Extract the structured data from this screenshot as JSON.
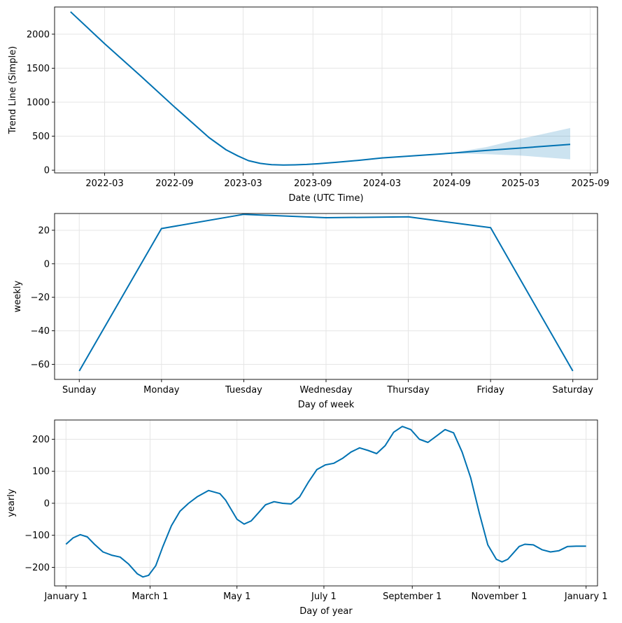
{
  "chart_data": [
    {
      "type": "line",
      "xlabel": "Date (UTC Time)",
      "ylabel": "Trend Line (Simple)",
      "xlim": [
        "2021-10-20",
        "2025-09-20"
      ],
      "ylim": [
        -40,
        2400
      ],
      "grid": true,
      "x_ticks": [
        "2022-03",
        "2022-09",
        "2023-03",
        "2023-09",
        "2024-03",
        "2024-09",
        "2025-03",
        "2025-09"
      ],
      "y_ticks": [
        0,
        500,
        1000,
        1500,
        2000
      ],
      "series": [
        {
          "x": [
            "2021-12-01",
            "2022-03-01",
            "2022-06-01",
            "2022-09-01",
            "2022-12-01",
            "2023-01-15",
            "2023-02-15",
            "2023-03-15",
            "2023-04-15",
            "2023-05-15",
            "2023-06-15",
            "2023-07-15",
            "2023-08-15",
            "2023-09-15",
            "2023-11-01",
            "2024-01-01",
            "2024-03-01",
            "2024-06-01",
            "2024-09-01",
            "2024-12-01",
            "2025-03-01",
            "2025-07-10"
          ],
          "y": [
            2330,
            1860,
            1400,
            930,
            480,
            300,
            210,
            140,
            100,
            80,
            75,
            78,
            85,
            95,
            115,
            145,
            180,
            215,
            250,
            290,
            325,
            380
          ]
        }
      ],
      "uncertainty": {
        "x": [
          "2024-09-01",
          "2024-12-01",
          "2025-03-01",
          "2025-07-10"
        ],
        "lower": [
          245,
          235,
          215,
          160
        ],
        "upper": [
          255,
          340,
          460,
          620
        ]
      }
    },
    {
      "type": "line",
      "xlabel": "Day of week",
      "ylabel": "weekly",
      "categories": [
        "Sunday",
        "Monday",
        "Tuesday",
        "Wednesday",
        "Thursday",
        "Friday",
        "Saturday"
      ],
      "ylim": [
        -69,
        30
      ],
      "grid": true,
      "y_ticks": [
        -60,
        -40,
        -20,
        0,
        20
      ],
      "series": [
        {
          "values": [
            -64,
            21,
            29.5,
            27.5,
            28,
            21.5,
            -64
          ]
        }
      ]
    },
    {
      "type": "line",
      "xlabel": "Day of year",
      "ylabel": "yearly",
      "x_ticks": [
        "January 1",
        "March 1",
        "May 1",
        "July 1",
        "September 1",
        "November 1",
        "January 1"
      ],
      "x_tick_days": [
        0,
        59,
        120,
        181,
        243,
        304,
        365
      ],
      "xlim": [
        -8,
        373
      ],
      "ylim": [
        -258,
        260
      ],
      "grid": true,
      "y_ticks": [
        -200,
        -100,
        0,
        100,
        200
      ],
      "series": [
        {
          "x": [
            0,
            5,
            10,
            15,
            20,
            26,
            32,
            38,
            44,
            50,
            54,
            58,
            63,
            68,
            74,
            80,
            86,
            92,
            100,
            108,
            112,
            116,
            120,
            125,
            130,
            135,
            140,
            146,
            152,
            158,
            164,
            170,
            176,
            182,
            188,
            194,
            200,
            206,
            212,
            218,
            224,
            230,
            236,
            242,
            248,
            254,
            260,
            266,
            272,
            278,
            284,
            290,
            296,
            302,
            306,
            310,
            314,
            318,
            322,
            328,
            334,
            340,
            346,
            352,
            358,
            365
          ],
          "y": [
            -128,
            -108,
            -98,
            -105,
            -128,
            -152,
            -162,
            -168,
            -190,
            -220,
            -230,
            -225,
            -195,
            -135,
            -70,
            -25,
            0,
            20,
            40,
            30,
            10,
            -20,
            -50,
            -65,
            -55,
            -30,
            -5,
            5,
            0,
            -2,
            20,
            65,
            105,
            120,
            125,
            140,
            160,
            173,
            165,
            155,
            180,
            222,
            240,
            230,
            200,
            190,
            210,
            230,
            220,
            160,
            80,
            -30,
            -130,
            -175,
            -183,
            -175,
            -155,
            -135,
            -128,
            -130,
            -145,
            -152,
            -148,
            -135,
            -134,
            -134
          ]
        }
      ]
    }
  ]
}
